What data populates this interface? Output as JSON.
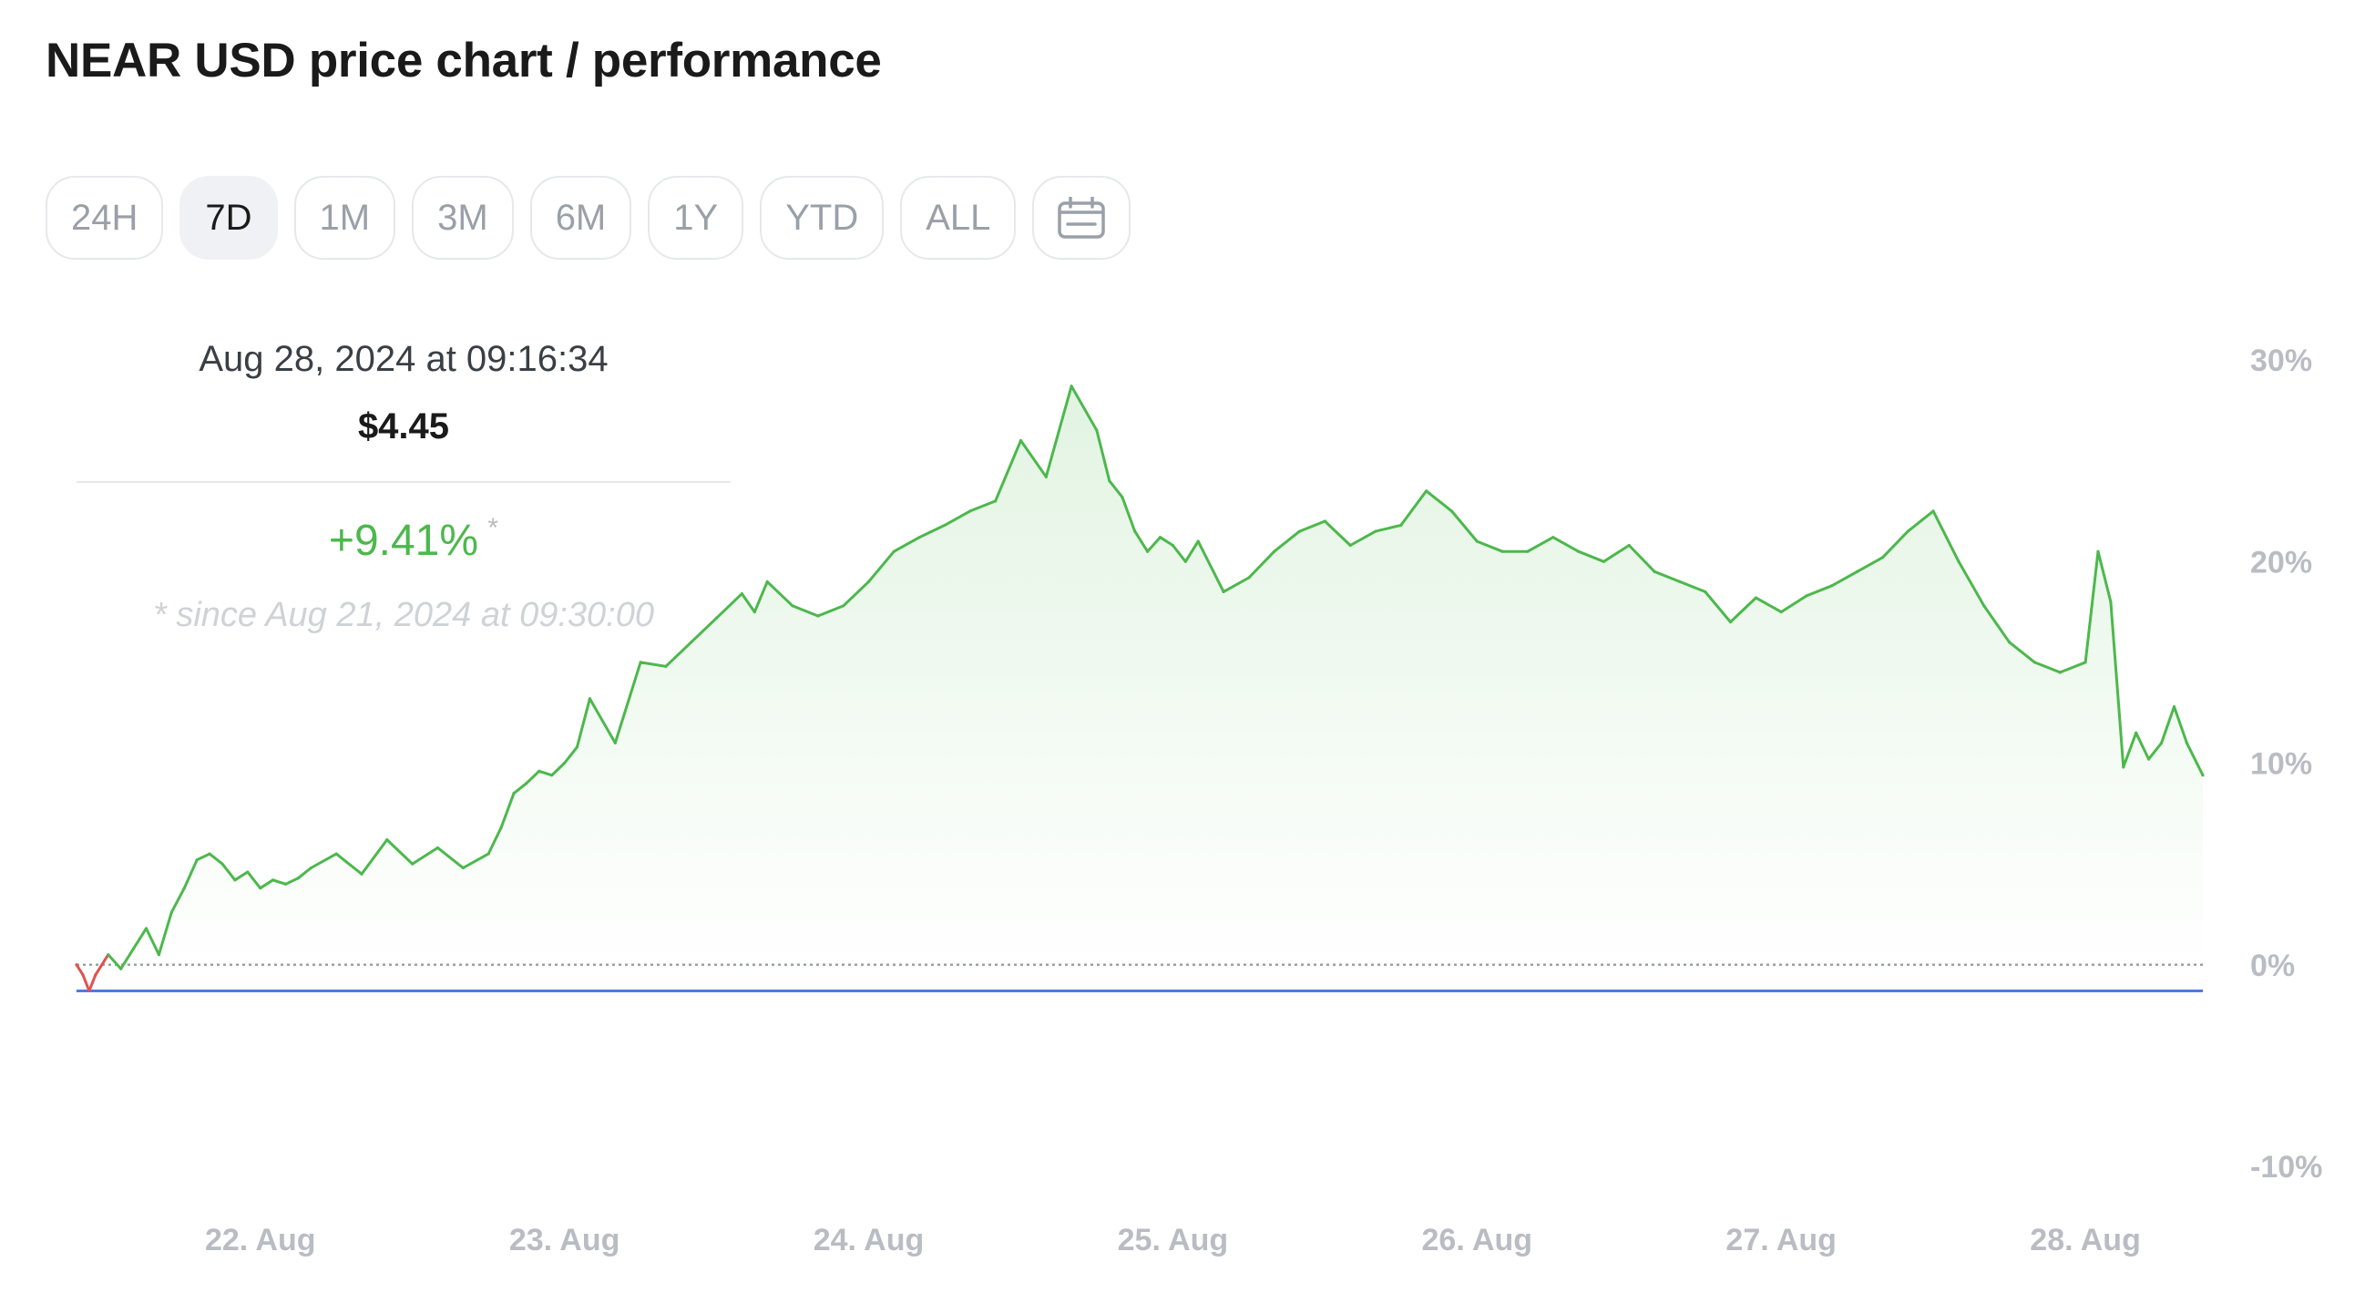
{
  "title": "NEAR USD price chart / performance",
  "ranges": [
    {
      "label": "24H",
      "active": false
    },
    {
      "label": "7D",
      "active": true
    },
    {
      "label": "1M",
      "active": false
    },
    {
      "label": "3M",
      "active": false
    },
    {
      "label": "6M",
      "active": false
    },
    {
      "label": "1Y",
      "active": false
    },
    {
      "label": "YTD",
      "active": false
    },
    {
      "label": "ALL",
      "active": false
    }
  ],
  "calendar_icon": "calendar-icon",
  "tooltip": {
    "date": "Aug 28, 2024 at 09:16:34",
    "price": "$4.45",
    "change": "+9.41%",
    "asterisk": "*",
    "since": "* since Aug 21, 2024 at 09:30:00"
  },
  "colors": {
    "up": "#4cb84c",
    "down": "#e05252",
    "baseline": "#4a7be8",
    "axis_text": "#b9bdc3"
  },
  "chart_data": {
    "type": "area",
    "y_unit": "percent change",
    "ylim": [
      -10,
      30
    ],
    "yticks": [
      -10,
      0,
      10,
      20,
      30
    ],
    "ytick_labels": [
      "-10%",
      "0%",
      "10%",
      "20%",
      "30%"
    ],
    "xlim": [
      "2024-08-21 09:30",
      "2024-08-28 09:16"
    ],
    "xticks": [
      "2024-08-22 00:00",
      "2024-08-23 00:00",
      "2024-08-24 00:00",
      "2024-08-25 00:00",
      "2024-08-26 00:00",
      "2024-08-27 00:00",
      "2024-08-28 00:00"
    ],
    "xtick_labels": [
      "22. Aug",
      "23. Aug",
      "24. Aug",
      "25. Aug",
      "26. Aug",
      "27. Aug",
      "28. Aug"
    ],
    "reference_line_y": -1.3,
    "x": [
      "2024-08-21 09:30",
      "2024-08-21 10:00",
      "2024-08-21 10:30",
      "2024-08-21 11:00",
      "2024-08-21 12:00",
      "2024-08-21 13:00",
      "2024-08-21 14:00",
      "2024-08-21 15:00",
      "2024-08-21 16:00",
      "2024-08-21 17:00",
      "2024-08-21 18:00",
      "2024-08-21 19:00",
      "2024-08-21 20:00",
      "2024-08-21 21:00",
      "2024-08-21 22:00",
      "2024-08-21 23:00",
      "2024-08-22 00:00",
      "2024-08-22 01:00",
      "2024-08-22 02:00",
      "2024-08-22 03:00",
      "2024-08-22 04:00",
      "2024-08-22 06:00",
      "2024-08-22 08:00",
      "2024-08-22 10:00",
      "2024-08-22 12:00",
      "2024-08-22 14:00",
      "2024-08-22 16:00",
      "2024-08-22 18:00",
      "2024-08-22 19:00",
      "2024-08-22 20:00",
      "2024-08-22 21:00",
      "2024-08-22 22:00",
      "2024-08-22 23:00",
      "2024-08-23 00:00",
      "2024-08-23 01:00",
      "2024-08-23 02:00",
      "2024-08-23 04:00",
      "2024-08-23 06:00",
      "2024-08-23 08:00",
      "2024-08-23 10:00",
      "2024-08-23 12:00",
      "2024-08-23 14:00",
      "2024-08-23 15:00",
      "2024-08-23 16:00",
      "2024-08-23 18:00",
      "2024-08-23 20:00",
      "2024-08-23 22:00",
      "2024-08-24 00:00",
      "2024-08-24 02:00",
      "2024-08-24 04:00",
      "2024-08-24 06:00",
      "2024-08-24 08:00",
      "2024-08-24 10:00",
      "2024-08-24 12:00",
      "2024-08-24 14:00",
      "2024-08-24 16:00",
      "2024-08-24 18:00",
      "2024-08-24 19:00",
      "2024-08-24 20:00",
      "2024-08-24 21:00",
      "2024-08-24 22:00",
      "2024-08-24 23:00",
      "2024-08-25 00:00",
      "2024-08-25 01:00",
      "2024-08-25 02:00",
      "2024-08-25 04:00",
      "2024-08-25 06:00",
      "2024-08-25 08:00",
      "2024-08-25 10:00",
      "2024-08-25 12:00",
      "2024-08-25 14:00",
      "2024-08-25 16:00",
      "2024-08-25 18:00",
      "2024-08-25 20:00",
      "2024-08-25 22:00",
      "2024-08-26 00:00",
      "2024-08-26 02:00",
      "2024-08-26 04:00",
      "2024-08-26 06:00",
      "2024-08-26 08:00",
      "2024-08-26 10:00",
      "2024-08-26 12:00",
      "2024-08-26 14:00",
      "2024-08-26 16:00",
      "2024-08-26 18:00",
      "2024-08-26 20:00",
      "2024-08-26 22:00",
      "2024-08-27 00:00",
      "2024-08-27 02:00",
      "2024-08-27 04:00",
      "2024-08-27 06:00",
      "2024-08-27 08:00",
      "2024-08-27 10:00",
      "2024-08-27 12:00",
      "2024-08-27 14:00",
      "2024-08-27 16:00",
      "2024-08-27 18:00",
      "2024-08-27 20:00",
      "2024-08-27 22:00",
      "2024-08-28 00:00",
      "2024-08-28 01:00",
      "2024-08-28 02:00",
      "2024-08-28 03:00",
      "2024-08-28 04:00",
      "2024-08-28 05:00",
      "2024-08-28 06:00",
      "2024-08-28 07:00",
      "2024-08-28 08:00",
      "2024-08-28 09:16"
    ],
    "series": [
      {
        "values": [
          0,
          -0.5,
          -1.3,
          -0.5,
          0.5,
          -0.2,
          0.8,
          1.8,
          0.5,
          2.6,
          3.8,
          5.2,
          5.5,
          5.0,
          4.2,
          4.6,
          3.8,
          4.2,
          4.0,
          4.3,
          4.8,
          5.5,
          4.5,
          6.2,
          5.0,
          5.8,
          4.8,
          5.5,
          6.8,
          8.5,
          9.0,
          9.6,
          9.4,
          10.0,
          10.8,
          13.2,
          11.0,
          15.0,
          14.8,
          16.0,
          17.2,
          18.4,
          17.5,
          19.0,
          17.8,
          17.3,
          17.8,
          19.0,
          20.5,
          21.2,
          21.8,
          22.5,
          23.0,
          26.0,
          24.2,
          28.7,
          26.5,
          24.0,
          23.2,
          21.5,
          20.5,
          21.2,
          20.8,
          20.0,
          21.0,
          18.5,
          19.2,
          20.5,
          21.5,
          22.0,
          20.8,
          21.5,
          21.8,
          23.5,
          22.5,
          21.0,
          20.5,
          20.5,
          21.2,
          20.5,
          20.0,
          20.8,
          19.5,
          19.0,
          18.5,
          17.0,
          18.2,
          17.5,
          18.3,
          18.8,
          19.5,
          20.2,
          21.5,
          22.5,
          20.0,
          17.8,
          16.0,
          15.0,
          14.5,
          15.0,
          20.5,
          18.0,
          9.8,
          11.5,
          10.2,
          11.0,
          12.8,
          11.0,
          9.4
        ]
      }
    ]
  }
}
